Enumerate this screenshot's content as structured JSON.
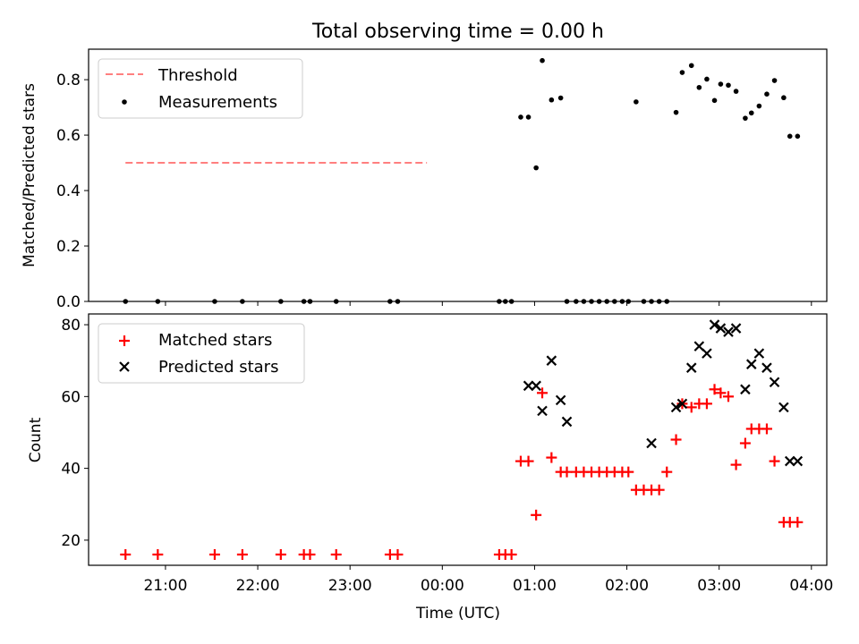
{
  "chart_data": [
    {
      "type": "scatter",
      "title": "Total observing time = 0.00 h",
      "xlabel": "",
      "ylabel": "Matched/Predicted stars",
      "ylim": [
        0,
        0.91
      ],
      "yticks": [
        0.0,
        0.2,
        0.4,
        0.6,
        0.8
      ],
      "ytick_labels": [
        "0.0",
        "0.2",
        "0.4",
        "0.6",
        "0.8"
      ],
      "legend_position": "top-left",
      "threshold": {
        "name": "Threshold",
        "value": 0.5,
        "x_range": [
          "20:34",
          "23:50"
        ],
        "color": "#ff7f7f"
      },
      "series": [
        {
          "name": "Measurements",
          "color": "#000000",
          "x": [
            "20:34",
            "20:55",
            "21:32",
            "21:50",
            "22:15",
            "22:30",
            "22:34",
            "22:51",
            "23:26",
            "23:31",
            "24:37",
            "24:41",
            "24:45",
            "24:51",
            "24:56",
            "25:01",
            "25:05",
            "25:11",
            "25:17",
            "25:21",
            "25:27",
            "25:32",
            "25:37",
            "25:42",
            "25:47",
            "25:52",
            "25:57",
            "26:01",
            "26:06",
            "26:11",
            "26:16",
            "26:21",
            "26:26",
            "26:32",
            "26:36",
            "26:42",
            "26:47",
            "26:52",
            "26:57",
            "27:01",
            "27:06",
            "27:11",
            "27:17",
            "27:21",
            "27:26",
            "27:31",
            "27:36",
            "27:42",
            "27:46",
            "27:51"
          ],
          "y": [
            0,
            0,
            0,
            0,
            0,
            0,
            0,
            0,
            0,
            0,
            0,
            0,
            0,
            0.665,
            0.665,
            0.482,
            0.869,
            0.727,
            0.734,
            0,
            0,
            0,
            0,
            0,
            0,
            0,
            0,
            0,
            0.72,
            0,
            0,
            0,
            0,
            0.682,
            0.826,
            0.851,
            0.772,
            0.802,
            0.725,
            0.784,
            0.78,
            0.758,
            0.661,
            0.68,
            0.705,
            0.748,
            0.797,
            0.735,
            0.596,
            0.596
          ]
        }
      ]
    },
    {
      "type": "scatter",
      "xlabel": "Time (UTC)",
      "ylabel": "Count",
      "ylim": [
        13,
        83
      ],
      "yticks": [
        20,
        40,
        60,
        80
      ],
      "ytick_labels": [
        "20",
        "40",
        "60",
        "80"
      ],
      "xticks": [
        "21:00",
        "22:00",
        "23:00",
        "00:00",
        "01:00",
        "02:00",
        "03:00",
        "04:00"
      ],
      "xlim": [
        "20:10",
        "28:10"
      ],
      "legend_position": "top-left",
      "series": [
        {
          "name": "Matched stars",
          "marker": "plus",
          "color": "#ff0000",
          "x": [
            "20:34",
            "20:55",
            "21:32",
            "21:50",
            "22:15",
            "22:30",
            "22:34",
            "22:51",
            "23:26",
            "23:31",
            "24:37",
            "24:41",
            "24:45",
            "24:51",
            "24:56",
            "25:01",
            "25:05",
            "25:11",
            "25:17",
            "25:21",
            "25:27",
            "25:32",
            "25:37",
            "25:42",
            "25:47",
            "25:52",
            "25:57",
            "26:01",
            "26:06",
            "26:11",
            "26:16",
            "26:21",
            "26:26",
            "26:32",
            "26:36",
            "26:42",
            "26:47",
            "26:52",
            "26:57",
            "27:01",
            "27:06",
            "27:11",
            "27:17",
            "27:21",
            "27:26",
            "27:31",
            "27:36",
            "27:42",
            "27:46",
            "27:51"
          ],
          "y": [
            16,
            16,
            16,
            16,
            16,
            16,
            16,
            16,
            16,
            16,
            16,
            16,
            16,
            42,
            42,
            27,
            61,
            43,
            39,
            39,
            39,
            39,
            39,
            39,
            39,
            39,
            39,
            39,
            34,
            34,
            34,
            34,
            39,
            48,
            58,
            57,
            58,
            58,
            62,
            61,
            60,
            41,
            47,
            51,
            51,
            51,
            42,
            25,
            25,
            25
          ]
        },
        {
          "name": "Predicted stars",
          "marker": "x",
          "color": "#000000",
          "x": [
            "24:56",
            "25:01",
            "25:05",
            "25:11",
            "25:17",
            "25:21",
            "26:16",
            "26:32",
            "26:36",
            "26:42",
            "26:47",
            "26:52",
            "26:57",
            "27:01",
            "27:06",
            "27:11",
            "27:17",
            "27:21",
            "27:26",
            "27:31",
            "27:36",
            "27:42",
            "27:46",
            "27:51"
          ],
          "y": [
            63,
            63,
            56,
            70,
            59,
            53,
            47,
            57,
            58,
            68,
            74,
            72,
            80,
            79,
            78,
            79,
            62,
            69,
            72,
            68,
            64,
            57,
            42,
            42
          ]
        }
      ]
    }
  ]
}
